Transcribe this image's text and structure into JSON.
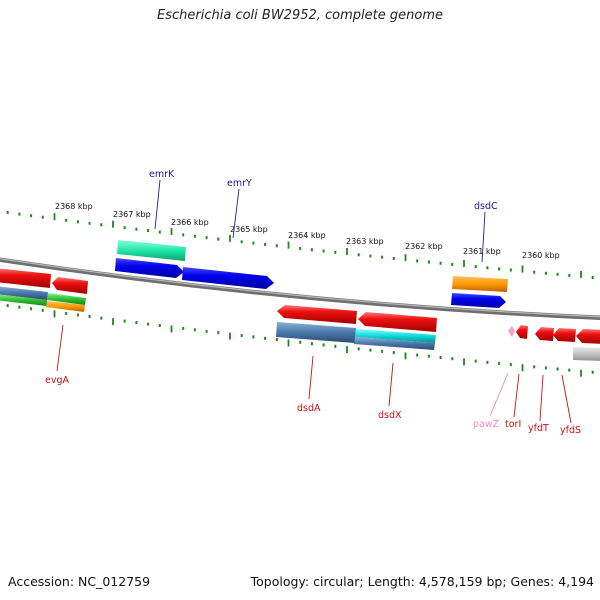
{
  "title": "Escherichia coli BW2952, complete genome",
  "accession": "Accession: NC_012759",
  "stats": "Topology: circular; Length: 4,578,159 bp; Genes: 4,194",
  "colors": {
    "backbone": "#8a8a8a",
    "tick": "#1b8a1b",
    "label_plus": "#1a1aa8",
    "label_minus": "#cc1111",
    "label_pseudo": "#f08cb8"
  },
  "kbp_labels": [
    "2368 kbp",
    "2367 kbp",
    "2366 kbp",
    "2365 kbp",
    "2364 kbp",
    "2363 kbp",
    "2362 kbp",
    "2361 kbp",
    "2360 kbp"
  ],
  "gene_labels": [
    {
      "name": "emrK",
      "strand": "plus"
    },
    {
      "name": "emrY",
      "strand": "plus"
    },
    {
      "name": "dsdC",
      "strand": "plus"
    },
    {
      "name": "evgA",
      "strand": "minus"
    },
    {
      "name": "dsdA",
      "strand": "minus"
    },
    {
      "name": "dsdX",
      "strand": "minus"
    },
    {
      "name": "pawZ",
      "strand": "pseudo"
    },
    {
      "name": "torI",
      "strand": "minus"
    },
    {
      "name": "yfdT",
      "strand": "minus"
    },
    {
      "name": "yfdS",
      "strand": "minus"
    }
  ]
}
